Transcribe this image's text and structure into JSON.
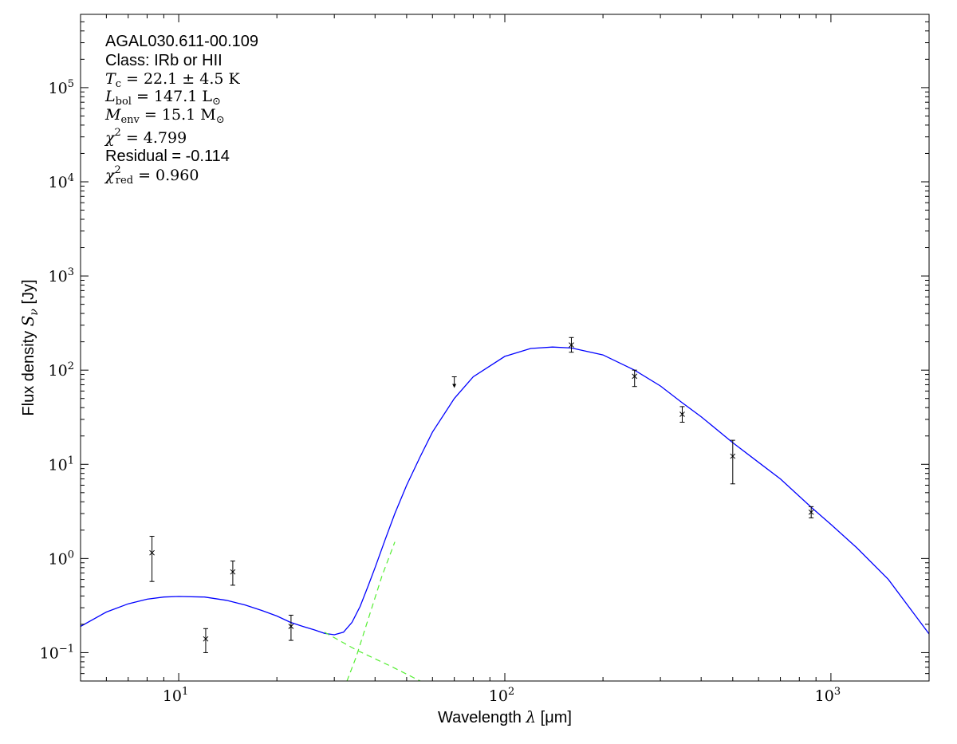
{
  "chart_data": {
    "type": "scatter",
    "x_scale": "log",
    "y_scale": "log",
    "xlim": [
      5,
      2000
    ],
    "ylim": [
      0.05,
      600000
    ],
    "grid": false,
    "xlabel": {
      "prefix": "Wavelength ",
      "sym": "λ",
      "unit": " [μm]"
    },
    "ylabel": {
      "prefix": "Flux density ",
      "sym": "S",
      "sub": "ν",
      "unit": " [Jy]"
    },
    "x_ticks": [
      {
        "value": 10,
        "base": "10",
        "exp": "1"
      },
      {
        "value": 100,
        "base": "10",
        "exp": "2"
      },
      {
        "value": 1000,
        "base": "10",
        "exp": "3"
      }
    ],
    "y_ticks": [
      {
        "value": 0.1,
        "base": "10",
        "exp": "−1"
      },
      {
        "value": 1,
        "base": "10",
        "exp": "0"
      },
      {
        "value": 10,
        "base": "10",
        "exp": "1"
      },
      {
        "value": 100,
        "base": "10",
        "exp": "2"
      },
      {
        "value": 1000,
        "base": "10",
        "exp": "3"
      },
      {
        "value": 10000,
        "base": "10",
        "exp": "4"
      },
      {
        "value": 100000,
        "base": "10",
        "exp": "5"
      }
    ],
    "annotations": {
      "source": "AGAL030.611-00.109",
      "class_line": "Class: IRb or HII",
      "tc": {
        "sym": "T",
        "sub": "c",
        "text": " = 22.1 ± 4.5 K"
      },
      "lbol": {
        "sym": "L",
        "sub": "bol",
        "text": " = 147.1 L",
        "tail": "⊙"
      },
      "menv": {
        "sym": "M",
        "sub": "env",
        "text": " = 15.1 M",
        "tail": "⊙"
      },
      "chi2": {
        "sym": "χ",
        "sup": "2",
        "text": " = 4.799"
      },
      "residual": "Residual = -0.114",
      "chi2red": {
        "sym": "χ",
        "sup": "2",
        "sub": "red",
        "text": " = 0.960"
      }
    },
    "measurements": [
      {
        "x": 8.28,
        "y": 1.15,
        "err_low": 0.57,
        "err_high": 1.72
      },
      {
        "x": 12.1,
        "y": 0.14,
        "err_low": 0.1,
        "err_high": 0.18
      },
      {
        "x": 14.65,
        "y": 0.72,
        "err_low": 0.52,
        "err_high": 0.94
      },
      {
        "x": 22.1,
        "y": 0.19,
        "err_low": 0.135,
        "err_high": 0.25
      },
      {
        "x": 160,
        "y": 185,
        "err_low": 155,
        "err_high": 222
      },
      {
        "x": 250,
        "y": 86,
        "err_low": 67,
        "err_high": 100
      },
      {
        "x": 350,
        "y": 34,
        "err_low": 28,
        "err_high": 41
      },
      {
        "x": 500,
        "y": 12.2,
        "err_low": 6.2,
        "err_high": 18
      },
      {
        "x": 870,
        "y": 3.1,
        "err_low": 2.7,
        "err_high": 3.55
      }
    ],
    "upper_limits": [
      {
        "x": 70,
        "y": 85
      }
    ],
    "series": [
      {
        "style": "solid",
        "color": "#0000ff",
        "x": [
          5,
          6,
          7,
          8,
          9,
          10,
          12,
          14,
          16,
          18,
          20,
          22,
          24,
          26,
          28,
          30,
          32,
          34,
          36,
          38,
          40,
          43,
          46,
          50,
          55,
          60,
          70,
          80,
          100,
          120,
          140,
          160,
          200,
          250,
          300,
          350,
          400,
          500,
          600,
          700,
          870,
          1000,
          1200,
          1500,
          2000
        ],
        "y": [
          0.19,
          0.27,
          0.33,
          0.37,
          0.39,
          0.395,
          0.39,
          0.36,
          0.32,
          0.28,
          0.245,
          0.21,
          0.19,
          0.175,
          0.16,
          0.155,
          0.165,
          0.21,
          0.31,
          0.5,
          0.8,
          1.6,
          3.0,
          6.0,
          12,
          22,
          50,
          85,
          140,
          170,
          176,
          172,
          145,
          100,
          68,
          45,
          32,
          17,
          10.5,
          7.0,
          3.5,
          2.3,
          1.3,
          0.6,
          0.158
        ]
      },
      {
        "style": "dashed",
        "color": "#55ee33",
        "x": [
          28,
          35,
          45,
          60
        ],
        "y": [
          0.165,
          0.107,
          0.071,
          0.043
        ]
      },
      {
        "style": "dashed",
        "color": "#55ee33",
        "x": [
          32,
          35,
          38,
          42,
          46
        ],
        "y": [
          0.04,
          0.09,
          0.22,
          0.65,
          1.5
        ]
      }
    ]
  }
}
